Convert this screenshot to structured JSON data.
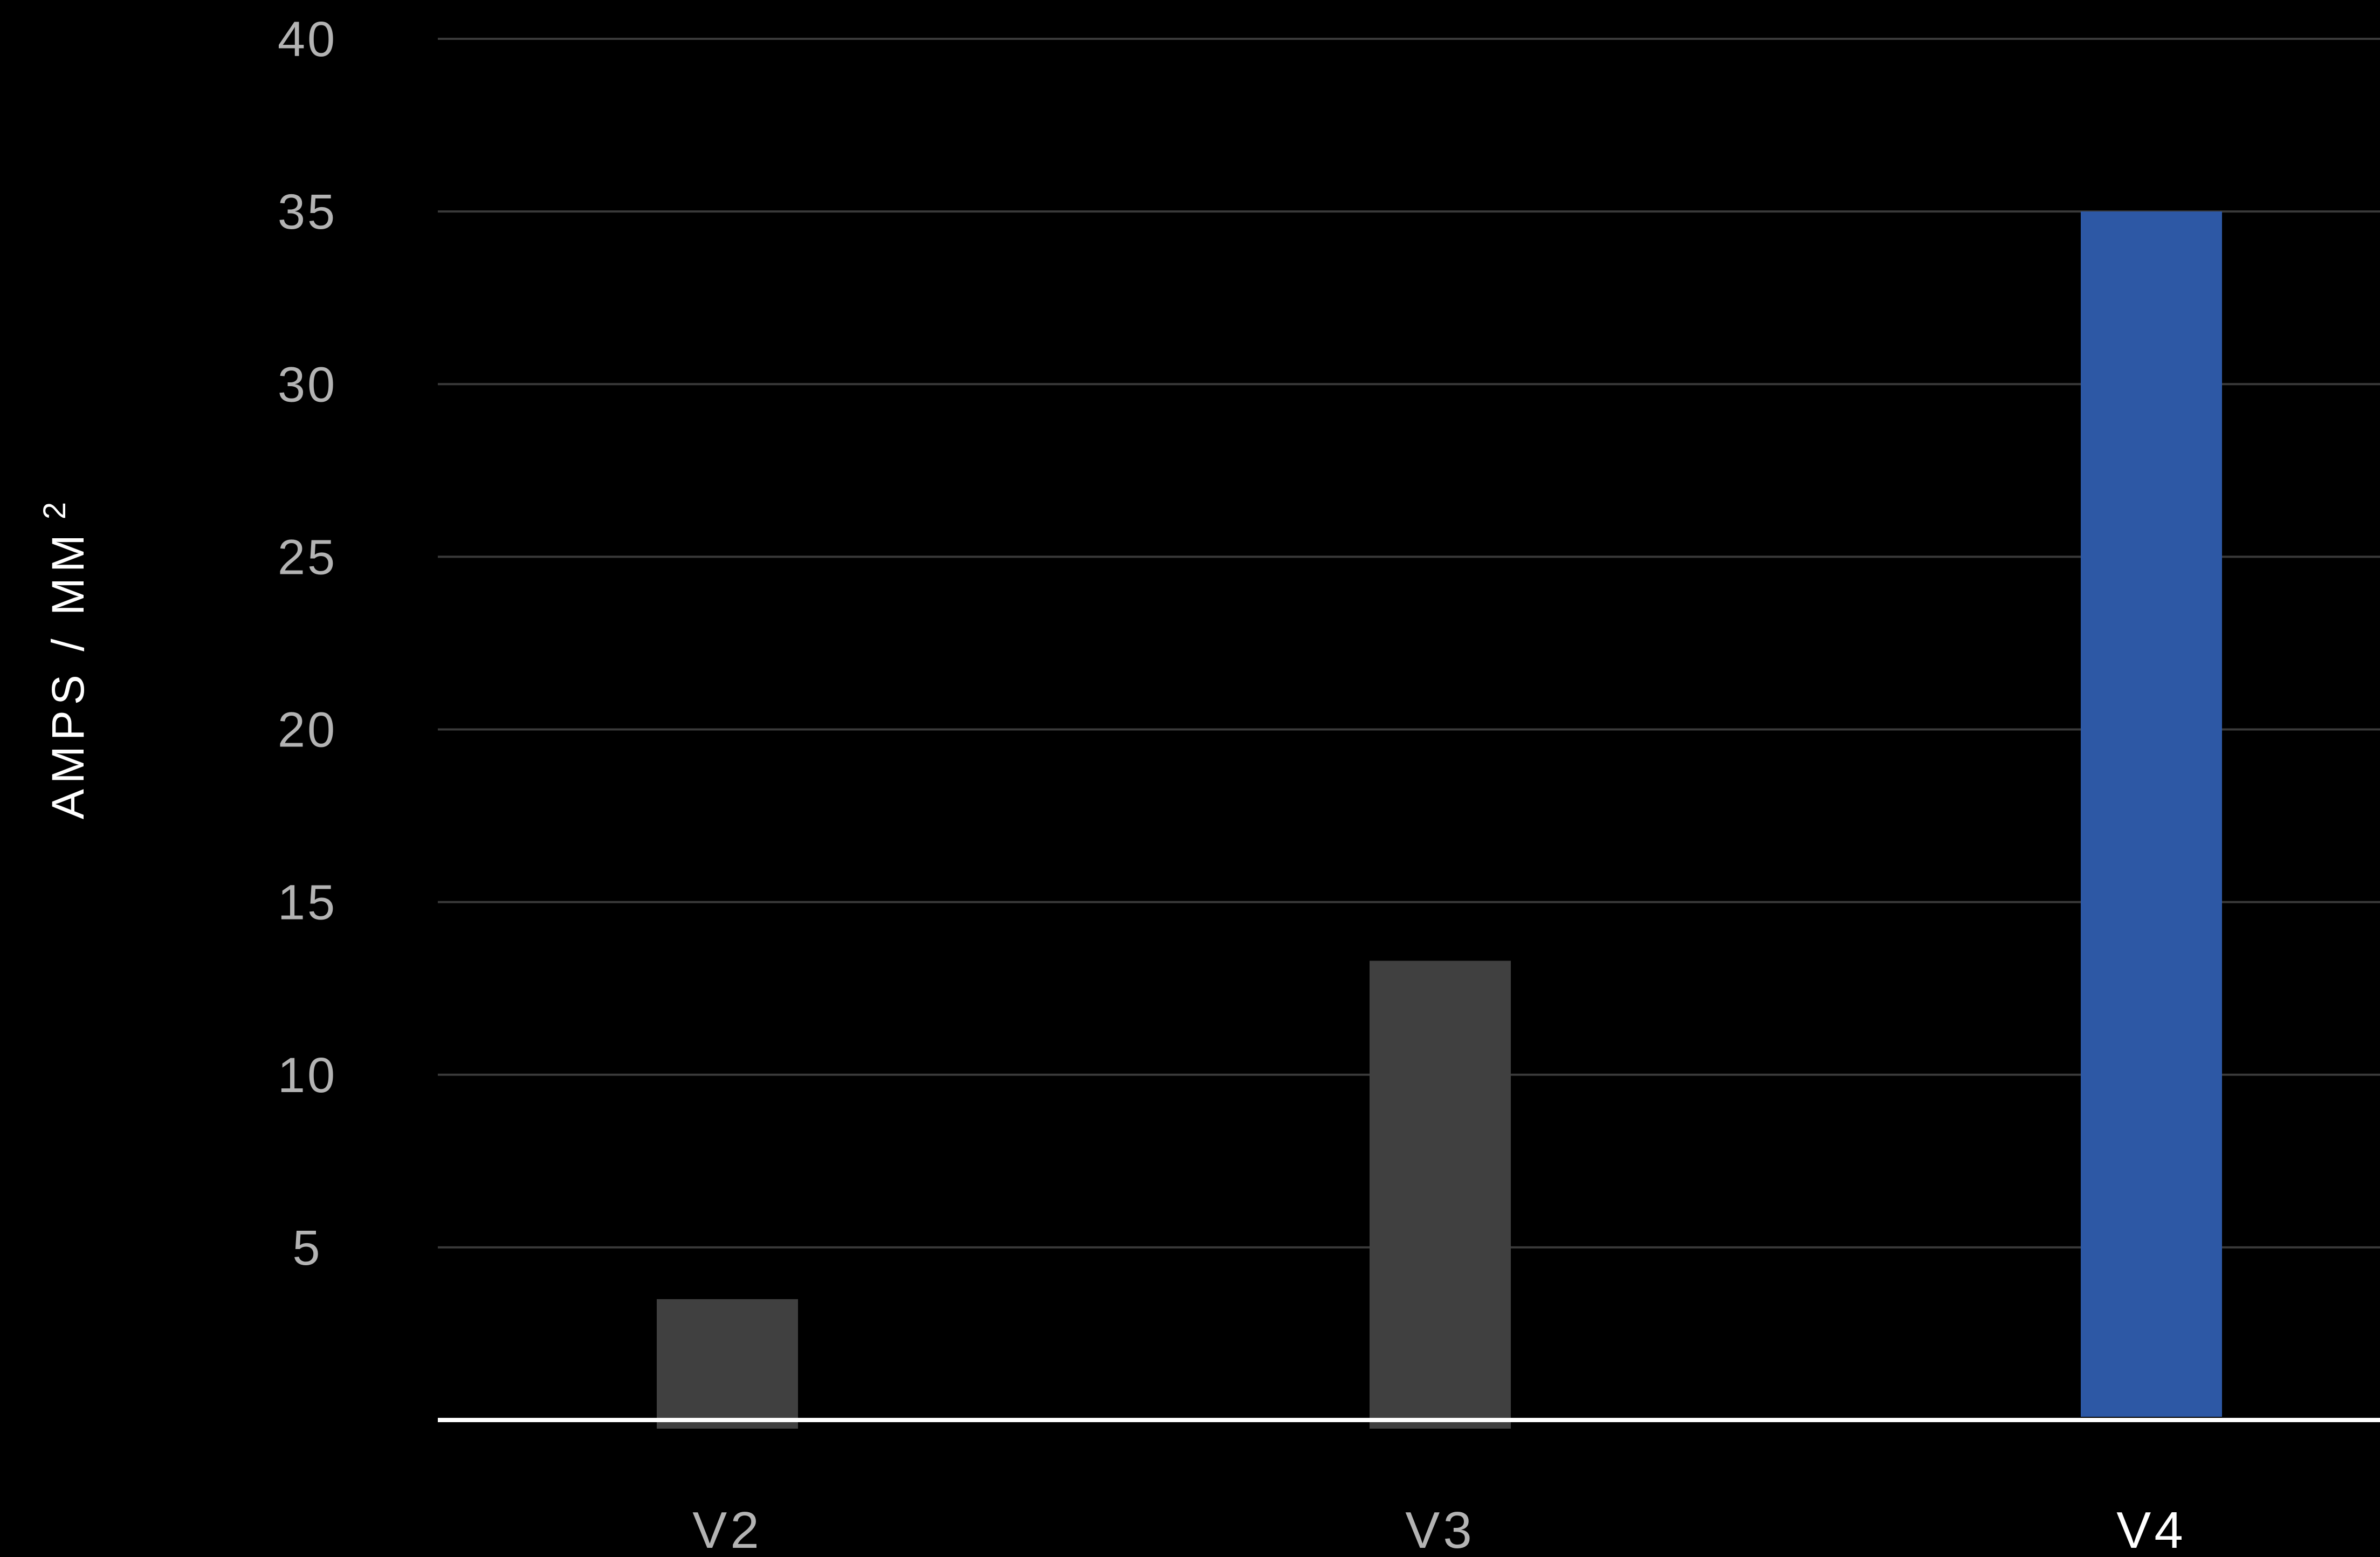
{
  "chart_data": {
    "type": "bar",
    "categories": [
      "V2",
      "V3",
      "V4"
    ],
    "values": [
      3.5,
      13.3,
      35
    ],
    "highlight_index": 2,
    "ylabel": "AMPS / MM",
    "ylabel_superscript": "2",
    "ylim": [
      0,
      40
    ],
    "yticks": [
      5,
      10,
      15,
      20,
      25,
      30,
      35,
      40
    ],
    "ytick_labels": [
      "5",
      "10",
      "15",
      "20",
      "25",
      "30",
      "35",
      "40"
    ],
    "grid": true,
    "legend": "none",
    "colors": {
      "background": "#000000",
      "bar_default": "#404040",
      "bar_highlight": "#2d58a5",
      "gridline": "#3a3a3a",
      "baseline": "#ffffff",
      "tick_text": "#b3b3b3",
      "category_text": "#b3b3b3",
      "category_highlight_text": "#ffffff",
      "axis_title_text": "#ffffff"
    }
  }
}
